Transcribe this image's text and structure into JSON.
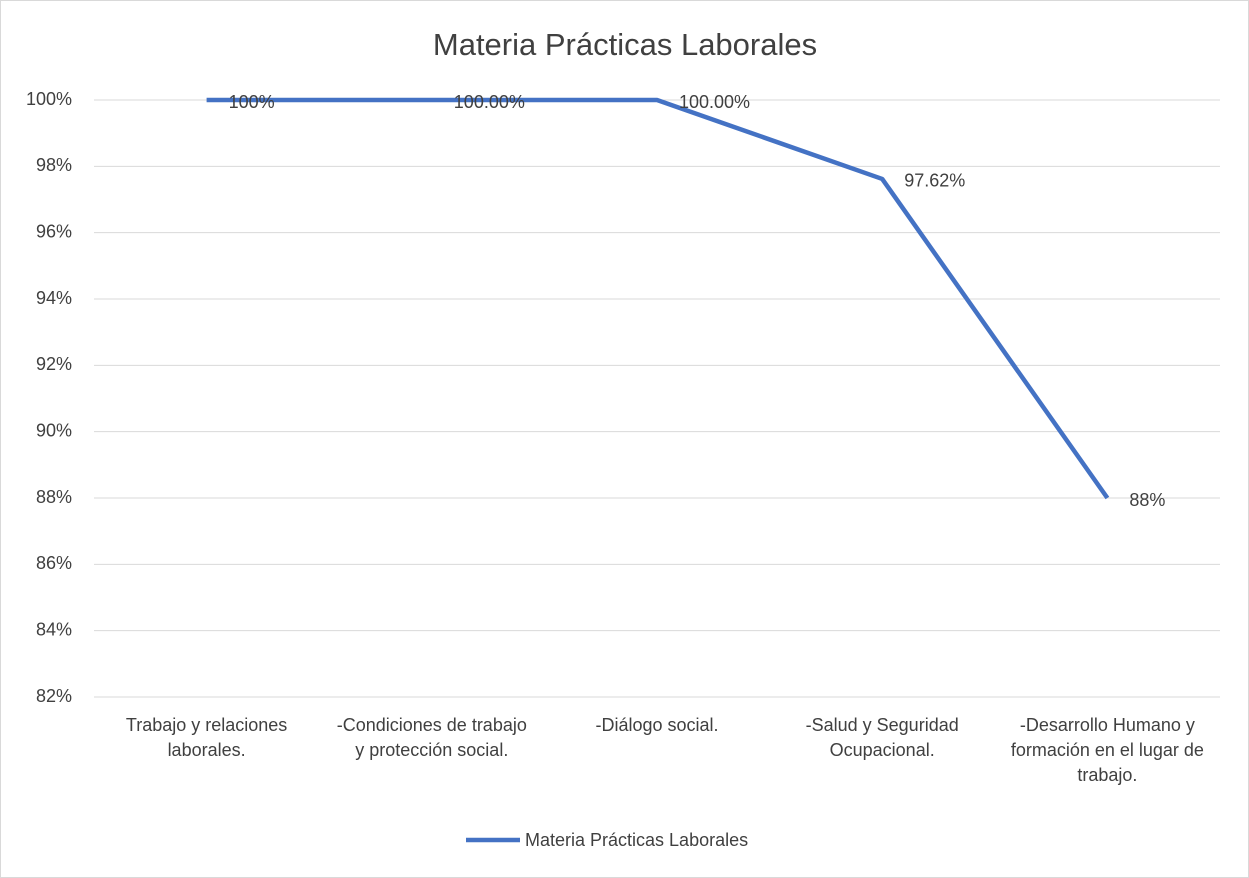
{
  "chart_data": {
    "type": "line",
    "title": "Materia Prácticas Laborales",
    "categories": [
      "Trabajo y relaciones laborales.",
      "-Condiciones de trabajo y protección social.",
      "-Diálogo social.",
      "-Salud y Seguridad Ocupacional.",
      "-Desarrollo Humano y formación en el lugar de trabajo."
    ],
    "series": [
      {
        "name": "Materia Prácticas Laborales",
        "color": "#4472c4",
        "values": [
          100,
          100,
          100,
          97.62,
          88
        ],
        "value_labels": [
          "100%",
          "100.00%",
          "100.00%",
          "97.62%",
          "88%"
        ]
      }
    ],
    "ylim": [
      82,
      100
    ],
    "yticks": [
      {
        "value": 82,
        "label": "82%"
      },
      {
        "value": 84,
        "label": "84%"
      },
      {
        "value": 86,
        "label": "86%"
      },
      {
        "value": 88,
        "label": "88%"
      },
      {
        "value": 90,
        "label": "90%"
      },
      {
        "value": 92,
        "label": "92%"
      },
      {
        "value": 94,
        "label": "94%"
      },
      {
        "value": 96,
        "label": "96%"
      },
      {
        "value": 98,
        "label": "98%"
      },
      {
        "value": 100,
        "label": "100%"
      }
    ],
    "grid": true,
    "legend": "bottom"
  }
}
